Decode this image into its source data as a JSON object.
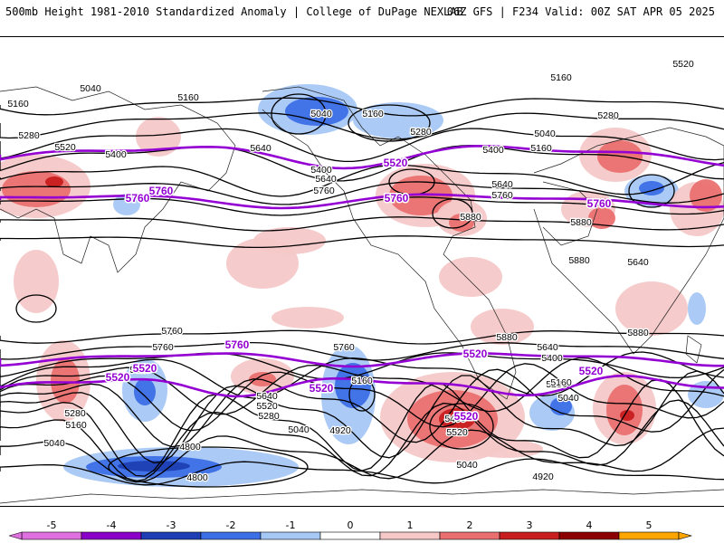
{
  "header": {
    "left": "500mb Height 1981-2010 Standardized Anomaly | College of DuPage NEXLAB",
    "right": "06Z GFS | F234 Valid: 00Z SAT APR 05 2025"
  },
  "colors": {
    "neg5": "#e070e0",
    "neg4": "#8a00c8",
    "neg3": "#1e3fb4",
    "neg2": "#3c6ee6",
    "neg1": "#a6c8f5",
    "zero": "#ffffff",
    "pos1": "#f6c8c8",
    "pos2": "#ea7070",
    "pos3": "#c81e1e",
    "pos4": "#8c0000",
    "pos5": "#ffa500",
    "contour": "#000000",
    "highlight_contour": "#9400d3"
  },
  "colorbar": {
    "ticks": [
      "-5",
      "-4",
      "-3",
      "-2",
      "-1",
      "0",
      "1",
      "2",
      "3",
      "4",
      "5"
    ]
  },
  "contour_labels": {
    "black": [
      "5040",
      "5160",
      "5280",
      "5400",
      "5520",
      "5640",
      "5760",
      "5880",
      "4920",
      "4800"
    ],
    "purple": [
      "5520",
      "5760"
    ]
  },
  "labels_on_map": [
    {
      "text": "5040",
      "c": "k"
    },
    {
      "text": "5160",
      "c": "k"
    },
    {
      "text": "5160",
      "c": "k"
    },
    {
      "text": "5280",
      "c": "k"
    },
    {
      "text": "5520",
      "c": "k"
    },
    {
      "text": "5400",
      "c": "k"
    },
    {
      "text": "5040",
      "c": "k"
    },
    {
      "text": "5160",
      "c": "k"
    },
    {
      "text": "5280",
      "c": "k"
    },
    {
      "text": "5160",
      "c": "k"
    },
    {
      "text": "5280",
      "c": "k"
    },
    {
      "text": "5520",
      "c": "k"
    },
    {
      "text": "5400",
      "c": "k"
    },
    {
      "text": "5160",
      "c": "k"
    },
    {
      "text": "5040",
      "c": "k"
    },
    {
      "text": "5640",
      "c": "k"
    },
    {
      "text": "5400",
      "c": "k"
    },
    {
      "text": "5640",
      "c": "k"
    },
    {
      "text": "5760",
      "c": "k"
    },
    {
      "text": "5640",
      "c": "k"
    },
    {
      "text": "5760",
      "c": "k"
    },
    {
      "text": "5880",
      "c": "k"
    },
    {
      "text": "5880",
      "c": "k"
    },
    {
      "text": "5880",
      "c": "k"
    },
    {
      "text": "5640",
      "c": "k"
    },
    {
      "text": "5760",
      "c": "k"
    },
    {
      "text": "5880",
      "c": "k"
    },
    {
      "text": "5880",
      "c": "k"
    },
    {
      "text": "5760",
      "c": "k"
    },
    {
      "text": "5760",
      "c": "k"
    },
    {
      "text": "5640",
      "c": "k"
    },
    {
      "text": "5400",
      "c": "k"
    },
    {
      "text": "5520",
      "c": "k"
    },
    {
      "text": "5280",
      "c": "k"
    },
    {
      "text": "5160",
      "c": "k"
    },
    {
      "text": "5040",
      "c": "k"
    },
    {
      "text": "5640",
      "c": "k"
    },
    {
      "text": "5520",
      "c": "k"
    },
    {
      "text": "5280",
      "c": "k"
    },
    {
      "text": "5040",
      "c": "k"
    },
    {
      "text": "4920",
      "c": "k"
    },
    {
      "text": "5160",
      "c": "k"
    },
    {
      "text": "5280",
      "c": "k"
    },
    {
      "text": "5160",
      "c": "k"
    },
    {
      "text": "5040",
      "c": "k"
    },
    {
      "text": "5400",
      "c": "k"
    },
    {
      "text": "5520",
      "c": "k"
    },
    {
      "text": "5040",
      "c": "k"
    },
    {
      "text": "4920",
      "c": "k"
    },
    {
      "text": "4800",
      "c": "k"
    },
    {
      "text": "4800",
      "c": "k"
    },
    {
      "text": "5520",
      "c": "p"
    },
    {
      "text": "5520",
      "c": "p"
    },
    {
      "text": "5520",
      "c": "p"
    },
    {
      "text": "5760",
      "c": "p"
    },
    {
      "text": "5760",
      "c": "p"
    },
    {
      "text": "5760",
      "c": "p"
    },
    {
      "text": "5760",
      "c": "p"
    },
    {
      "text": "5760",
      "c": "p"
    },
    {
      "text": "5520",
      "c": "p"
    },
    {
      "text": "5520",
      "c": "p"
    },
    {
      "text": "5520",
      "c": "p"
    },
    {
      "text": "5520",
      "c": "p"
    }
  ]
}
